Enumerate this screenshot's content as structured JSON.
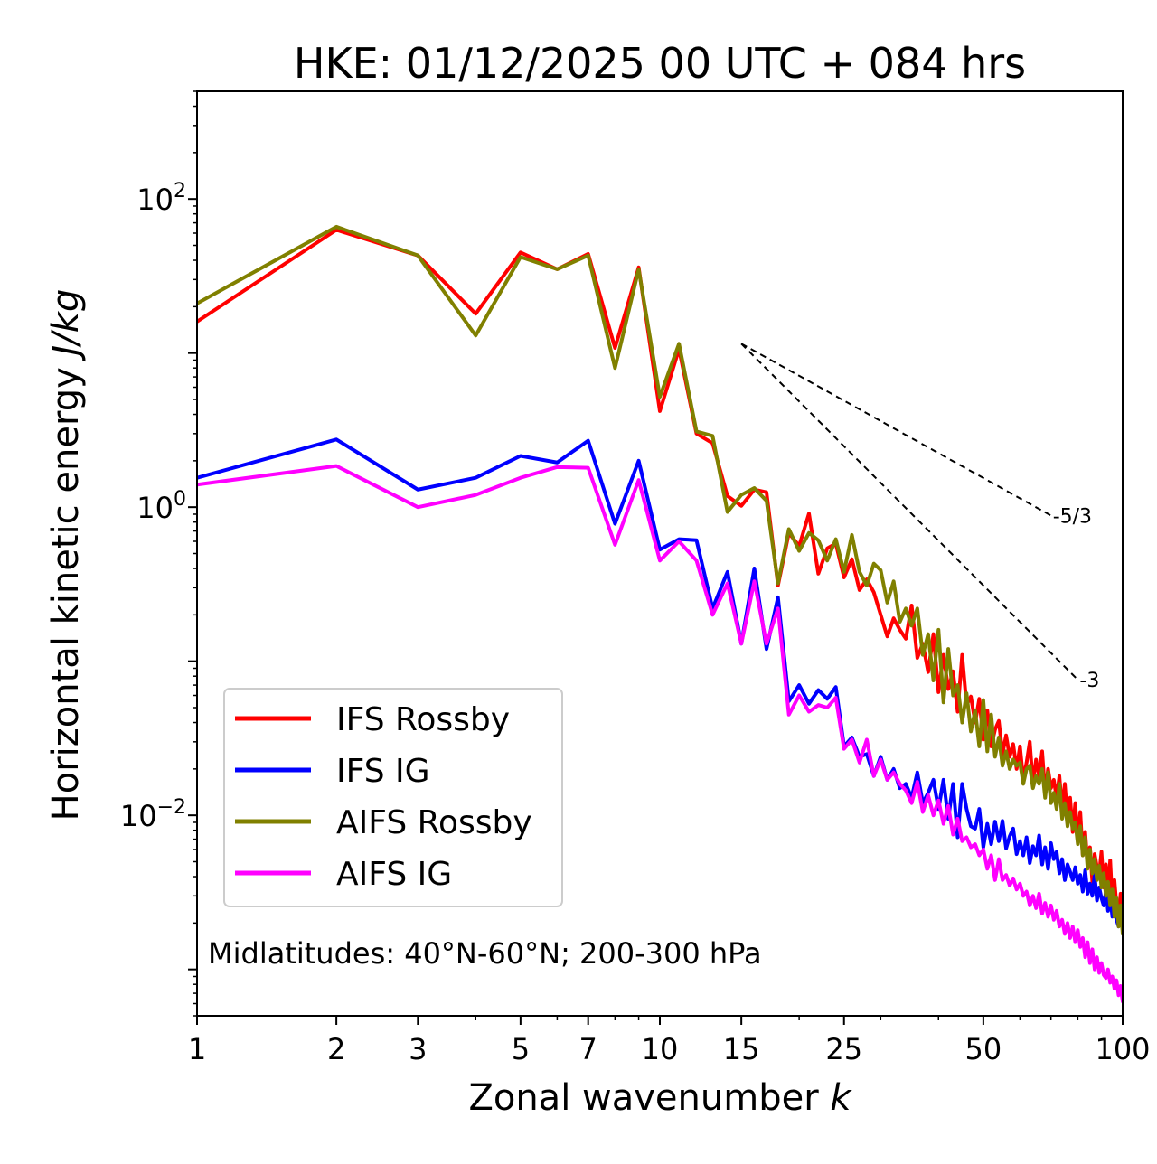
{
  "chart_data": {
    "type": "line",
    "title": "HKE: 01/12/2025 00 UTC + 084 hrs",
    "xlabel": "Zonal wavenumber",
    "xlabel_var": "k",
    "ylabel": "Horizontal kinetic energy",
    "ylabel_units": "J/kg",
    "xscale": "log",
    "yscale": "log",
    "xlim": [
      1,
      100
    ],
    "ylim": [
      0.0005,
      500
    ],
    "x_ticks": [
      1,
      2,
      3,
      5,
      7,
      10,
      15,
      25,
      50,
      100
    ],
    "x_tick_labels": [
      "1",
      "2",
      "3",
      "5",
      "7",
      "10",
      "15",
      "25",
      "50",
      "100"
    ],
    "y_ticks": [
      {
        "value": 100,
        "base": "10",
        "exp": "2"
      },
      {
        "value": 1,
        "base": "10",
        "exp": "0"
      },
      {
        "value": 0.01,
        "base": "10",
        "exp": "−2"
      }
    ],
    "annotation": "Midlatitudes: 40°N-60°N; 200-300 hPa",
    "legend_position": "lower-left",
    "reference_lines": [
      {
        "label": "-5/3",
        "slope": -1.6667,
        "x0": 15,
        "y0": 11.5,
        "x1": 70
      },
      {
        "label": "-3",
        "slope": -3,
        "x0": 15,
        "y0": 11.5,
        "x1": 80
      }
    ],
    "series": [
      {
        "name": "IFS Rossby",
        "color": "#ff0000",
        "values": [
          16.0,
          63.0,
          43.0,
          18.0,
          45.0,
          35.0,
          44.0,
          10.8,
          36.0,
          4.2,
          10.6,
          3.0,
          2.6,
          1.18,
          1.02,
          1.3,
          1.25,
          0.31,
          0.68,
          0.56,
          0.91,
          0.37,
          0.54,
          0.58,
          0.35,
          0.46,
          0.29,
          0.34,
          0.28,
          0.2,
          0.145,
          0.19,
          0.16,
          0.14,
          0.23,
          0.105,
          0.13,
          0.085,
          0.15,
          0.063,
          0.11,
          0.066,
          0.086,
          0.047,
          0.11,
          0.052,
          0.059,
          0.04,
          0.057,
          0.031,
          0.048,
          0.028,
          0.036,
          0.041,
          0.025,
          0.033,
          0.024,
          0.029,
          0.02,
          0.028,
          0.017,
          0.022,
          0.03,
          0.016,
          0.023,
          0.018,
          0.026,
          0.014,
          0.02,
          0.015,
          0.017,
          0.013,
          0.018,
          0.011,
          0.016,
          0.0095,
          0.013,
          0.0078,
          0.012,
          0.0068,
          0.0105,
          0.0055,
          0.0078,
          0.0048,
          0.0062,
          0.0037,
          0.0056,
          0.0046,
          0.0042,
          0.0058,
          0.0034,
          0.0048,
          0.0033,
          0.0051,
          0.0027,
          0.0038,
          0.0026,
          0.0022,
          0.0031,
          0.0021
        ]
      },
      {
        "name": "IFS IG",
        "color": "#0000ff",
        "values": [
          1.55,
          2.75,
          1.3,
          1.55,
          2.15,
          1.95,
          2.7,
          0.78,
          2.0,
          0.53,
          0.62,
          0.61,
          0.22,
          0.38,
          0.13,
          0.4,
          0.12,
          0.26,
          0.055,
          0.07,
          0.053,
          0.065,
          0.057,
          0.068,
          0.028,
          0.032,
          0.024,
          0.025,
          0.018,
          0.024,
          0.017,
          0.02,
          0.015,
          0.016,
          0.013,
          0.019,
          0.012,
          0.014,
          0.017,
          0.011,
          0.017,
          0.0095,
          0.016,
          0.0072,
          0.016,
          0.011,
          0.0085,
          0.0082,
          0.011,
          0.0062,
          0.0088,
          0.0065,
          0.0091,
          0.0068,
          0.0092,
          0.0061,
          0.0073,
          0.0082,
          0.0056,
          0.0068,
          0.0055,
          0.0072,
          0.0049,
          0.0063,
          0.0055,
          0.0074,
          0.0048,
          0.0062,
          0.0045,
          0.0066,
          0.0052,
          0.0058,
          0.0042,
          0.0052,
          0.0038,
          0.0048,
          0.0043,
          0.0038,
          0.0046,
          0.0036,
          0.0041,
          0.0032,
          0.0044,
          0.0031,
          0.0036,
          0.003,
          0.0041,
          0.0028,
          0.0034,
          0.0029,
          0.0026,
          0.0032,
          0.0024,
          0.003,
          0.0022,
          0.0027,
          0.0021,
          0.0019,
          0.0025,
          0.0018
        ]
      },
      {
        "name": "AIFS Rossby",
        "color": "#808000",
        "values": [
          21.0,
          66.0,
          43.0,
          13.0,
          42.0,
          35.0,
          43.0,
          8.0,
          35.0,
          5.2,
          11.5,
          3.1,
          2.9,
          0.93,
          1.2,
          1.33,
          1.1,
          0.32,
          0.72,
          0.52,
          0.68,
          0.61,
          0.45,
          0.62,
          0.38,
          0.66,
          0.38,
          0.31,
          0.43,
          0.39,
          0.24,
          0.33,
          0.18,
          0.22,
          0.17,
          0.22,
          0.11,
          0.15,
          0.075,
          0.16,
          0.054,
          0.12,
          0.06,
          0.07,
          0.04,
          0.062,
          0.035,
          0.048,
          0.028,
          0.056,
          0.026,
          0.045,
          0.024,
          0.032,
          0.021,
          0.026,
          0.02,
          0.023,
          0.021,
          0.022,
          0.016,
          0.02,
          0.021,
          0.015,
          0.018,
          0.016,
          0.02,
          0.013,
          0.019,
          0.012,
          0.014,
          0.011,
          0.016,
          0.0095,
          0.012,
          0.0085,
          0.0105,
          0.0082,
          0.009,
          0.0065,
          0.0085,
          0.0055,
          0.0072,
          0.0045,
          0.006,
          0.0042,
          0.0052,
          0.0038,
          0.0047,
          0.0034,
          0.0042,
          0.003,
          0.0037,
          0.0026,
          0.0033,
          0.0022,
          0.0029,
          0.0019,
          0.0026,
          0.0017
        ]
      },
      {
        "name": "AIFS IG",
        "color": "#ff00ff",
        "values": [
          1.4,
          1.85,
          1.0,
          1.2,
          1.55,
          1.82,
          1.8,
          0.57,
          1.5,
          0.45,
          0.6,
          0.45,
          0.2,
          0.32,
          0.13,
          0.33,
          0.13,
          0.22,
          0.045,
          0.06,
          0.047,
          0.052,
          0.05,
          0.058,
          0.027,
          0.031,
          0.022,
          0.031,
          0.018,
          0.023,
          0.017,
          0.019,
          0.016,
          0.0145,
          0.012,
          0.0165,
          0.0105,
          0.0135,
          0.01,
          0.0125,
          0.0088,
          0.0115,
          0.0075,
          0.0095,
          0.0068,
          0.0072,
          0.0062,
          0.0065,
          0.0055,
          0.006,
          0.0045,
          0.0055,
          0.0038,
          0.0052,
          0.0038,
          0.0041,
          0.0035,
          0.0039,
          0.0033,
          0.0036,
          0.003,
          0.0032,
          0.0026,
          0.003,
          0.0025,
          0.0031,
          0.0023,
          0.0027,
          0.0022,
          0.0026,
          0.0021,
          0.0024,
          0.0019,
          0.0021,
          0.0017,
          0.002,
          0.0016,
          0.0019,
          0.0015,
          0.0018,
          0.0014,
          0.0016,
          0.0012,
          0.0015,
          0.0011,
          0.00135,
          0.001,
          0.0012,
          0.00095,
          0.0011,
          0.00092,
          0.00088,
          0.001,
          0.00082,
          0.0009,
          0.00075,
          0.00085,
          0.00068,
          0.00078,
          0.00062
        ]
      }
    ]
  }
}
